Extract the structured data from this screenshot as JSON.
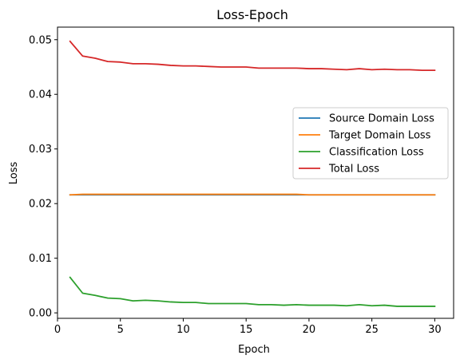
{
  "chart_data": {
    "type": "line",
    "title": "Loss-Epoch",
    "xlabel": "Epoch",
    "ylabel": "Loss",
    "xlim": [
      0.0,
      31.5
    ],
    "ylim": [
      -0.001,
      0.0523
    ],
    "xticks": [
      0,
      5,
      10,
      15,
      20,
      25,
      30
    ],
    "yticks": [
      0.0,
      0.01,
      0.02,
      0.03,
      0.04,
      0.05
    ],
    "ytick_labels": [
      "0.00",
      "0.01",
      "0.02",
      "0.03",
      "0.04",
      "0.05"
    ],
    "grid": false,
    "legend_position": "center-right",
    "x": [
      1,
      2,
      3,
      4,
      5,
      6,
      7,
      8,
      9,
      10,
      11,
      12,
      13,
      14,
      15,
      16,
      17,
      18,
      19,
      20,
      21,
      22,
      23,
      24,
      25,
      26,
      27,
      28,
      29,
      30
    ],
    "series": [
      {
        "name": "Source Domain Loss",
        "color": "#1f77b4",
        "values": [
          0.0216,
          0.0216,
          0.0216,
          0.0216,
          0.0216,
          0.0216,
          0.0216,
          0.0216,
          0.0216,
          0.0216,
          0.0216,
          0.0216,
          0.0216,
          0.0216,
          0.0216,
          0.0216,
          0.0216,
          0.0216,
          0.0216,
          0.0216,
          0.0216,
          0.0216,
          0.0216,
          0.0216,
          0.0216,
          0.0216,
          0.0216,
          0.0216,
          0.0216,
          0.0216
        ]
      },
      {
        "name": "Target Domain Loss",
        "color": "#ff7f0e",
        "values": [
          0.0216,
          0.0217,
          0.0217,
          0.0217,
          0.0217,
          0.0217,
          0.0217,
          0.0217,
          0.0217,
          0.0217,
          0.0217,
          0.0217,
          0.0217,
          0.0217,
          0.0217,
          0.0217,
          0.0217,
          0.0217,
          0.0217,
          0.0216,
          0.0216,
          0.0216,
          0.0216,
          0.0216,
          0.0216,
          0.0216,
          0.0216,
          0.0216,
          0.0216,
          0.0216
        ]
      },
      {
        "name": "Classification Loss",
        "color": "#2ca02c",
        "values": [
          0.0065,
          0.0036,
          0.0032,
          0.0027,
          0.0026,
          0.0022,
          0.0023,
          0.0022,
          0.002,
          0.0019,
          0.0019,
          0.0017,
          0.0017,
          0.0017,
          0.0017,
          0.0015,
          0.0015,
          0.0014,
          0.0015,
          0.0014,
          0.0014,
          0.0014,
          0.0013,
          0.0015,
          0.0013,
          0.0014,
          0.0012,
          0.0012,
          0.0012,
          0.0012
        ]
      },
      {
        "name": "Total Loss",
        "color": "#d62728",
        "values": [
          0.0497,
          0.047,
          0.0466,
          0.046,
          0.0459,
          0.0456,
          0.0456,
          0.0455,
          0.0453,
          0.0452,
          0.0452,
          0.0451,
          0.045,
          0.045,
          0.045,
          0.0448,
          0.0448,
          0.0448,
          0.0448,
          0.0447,
          0.0447,
          0.0446,
          0.0445,
          0.0447,
          0.0445,
          0.0446,
          0.0445,
          0.0445,
          0.0444,
          0.0444
        ]
      }
    ]
  }
}
